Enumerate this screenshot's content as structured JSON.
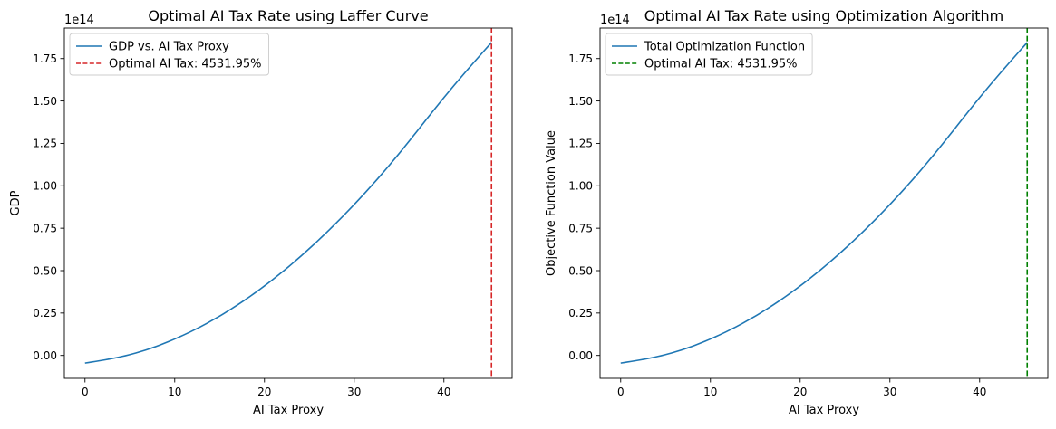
{
  "chart_data": [
    {
      "type": "line",
      "title": "Optimal AI Tax Rate using Laffer Curve",
      "xlabel": "AI Tax Proxy",
      "ylabel": "GDP",
      "xlim": [
        -2.3,
        47.6
      ],
      "ylim": [
        -0.135,
        1.93
      ],
      "y_offset_text": "1e14",
      "xticks": [
        0,
        10,
        20,
        30,
        40
      ],
      "xtick_labels": [
        "0",
        "10",
        "20",
        "30",
        "40"
      ],
      "yticks": [
        0,
        0.25,
        0.5,
        0.75,
        1.0,
        1.25,
        1.5,
        1.75
      ],
      "ytick_labels": [
        "0.00",
        "0.25",
        "0.50",
        "0.75",
        "1.00",
        "1.25",
        "1.50",
        "1.75"
      ],
      "grid": false,
      "legend_position": "top-left",
      "series": [
        {
          "name": "GDP vs. AI Tax Proxy",
          "color": "#1f77b4",
          "style": "solid",
          "x": [
            0,
            5,
            10,
            15,
            20,
            25,
            30,
            35,
            40,
            45.3
          ],
          "y": [
            -0.045,
            0.005,
            0.097,
            0.232,
            0.41,
            0.63,
            0.89,
            1.19,
            1.52,
            1.845
          ]
        }
      ],
      "vline": {
        "name": "Optimal AI Tax: 4531.95%",
        "x": 45.3,
        "color": "#d62728",
        "style": "dashed"
      }
    },
    {
      "type": "line",
      "title": "Optimal AI Tax Rate using Optimization Algorithm",
      "xlabel": "AI Tax Proxy",
      "ylabel": "Objective Function Value",
      "xlim": [
        -2.3,
        47.6
      ],
      "ylim": [
        -0.135,
        1.93
      ],
      "y_offset_text": "1e14",
      "xticks": [
        0,
        10,
        20,
        30,
        40
      ],
      "xtick_labels": [
        "0",
        "10",
        "20",
        "30",
        "40"
      ],
      "yticks": [
        0,
        0.25,
        0.5,
        0.75,
        1.0,
        1.25,
        1.5,
        1.75
      ],
      "ytick_labels": [
        "0.00",
        "0.25",
        "0.50",
        "0.75",
        "1.00",
        "1.25",
        "1.50",
        "1.75"
      ],
      "grid": false,
      "legend_position": "top-left",
      "series": [
        {
          "name": "Total Optimization Function",
          "color": "#1f77b4",
          "style": "solid",
          "x": [
            0,
            5,
            10,
            15,
            20,
            25,
            30,
            35,
            40,
            45.3
          ],
          "y": [
            -0.045,
            0.005,
            0.097,
            0.232,
            0.41,
            0.63,
            0.89,
            1.19,
            1.52,
            1.845
          ]
        }
      ],
      "vline": {
        "name": "Optimal AI Tax: 4531.95%",
        "x": 45.3,
        "color": "#008000",
        "style": "dashed"
      }
    }
  ]
}
